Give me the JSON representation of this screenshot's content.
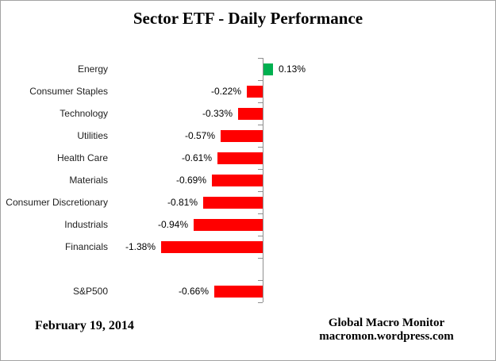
{
  "chart_data": {
    "type": "bar",
    "orientation": "horizontal",
    "title": "Sector ETF - Daily Performance",
    "categories": [
      "Energy",
      "Consumer Staples",
      "Technology",
      "Utilities",
      "Health Care",
      "Materials",
      "Consumer Discretionary",
      "Industrials",
      "Financials",
      "",
      "S&P500"
    ],
    "values": [
      0.13,
      -0.22,
      -0.33,
      -0.57,
      -0.61,
      -0.69,
      -0.81,
      -0.94,
      -1.38,
      null,
      -0.66
    ],
    "data_labels": [
      "0.13%",
      "-0.22%",
      "-0.33%",
      "-0.57%",
      "-0.61%",
      "-0.69%",
      "-0.81%",
      "-0.94%",
      "-1.38%",
      "",
      "-0.66%"
    ],
    "xlim": [
      -1.5,
      0.35
    ],
    "grid": false,
    "legend": false,
    "positive_color": "#00B050",
    "negative_color": "#FF0000",
    "axis_color": "#8f8f8f"
  },
  "footer": {
    "date": "February 19, 2014",
    "source_line1": "Global Macro Monitor",
    "source_line2": "macromon.wordpress.com"
  }
}
